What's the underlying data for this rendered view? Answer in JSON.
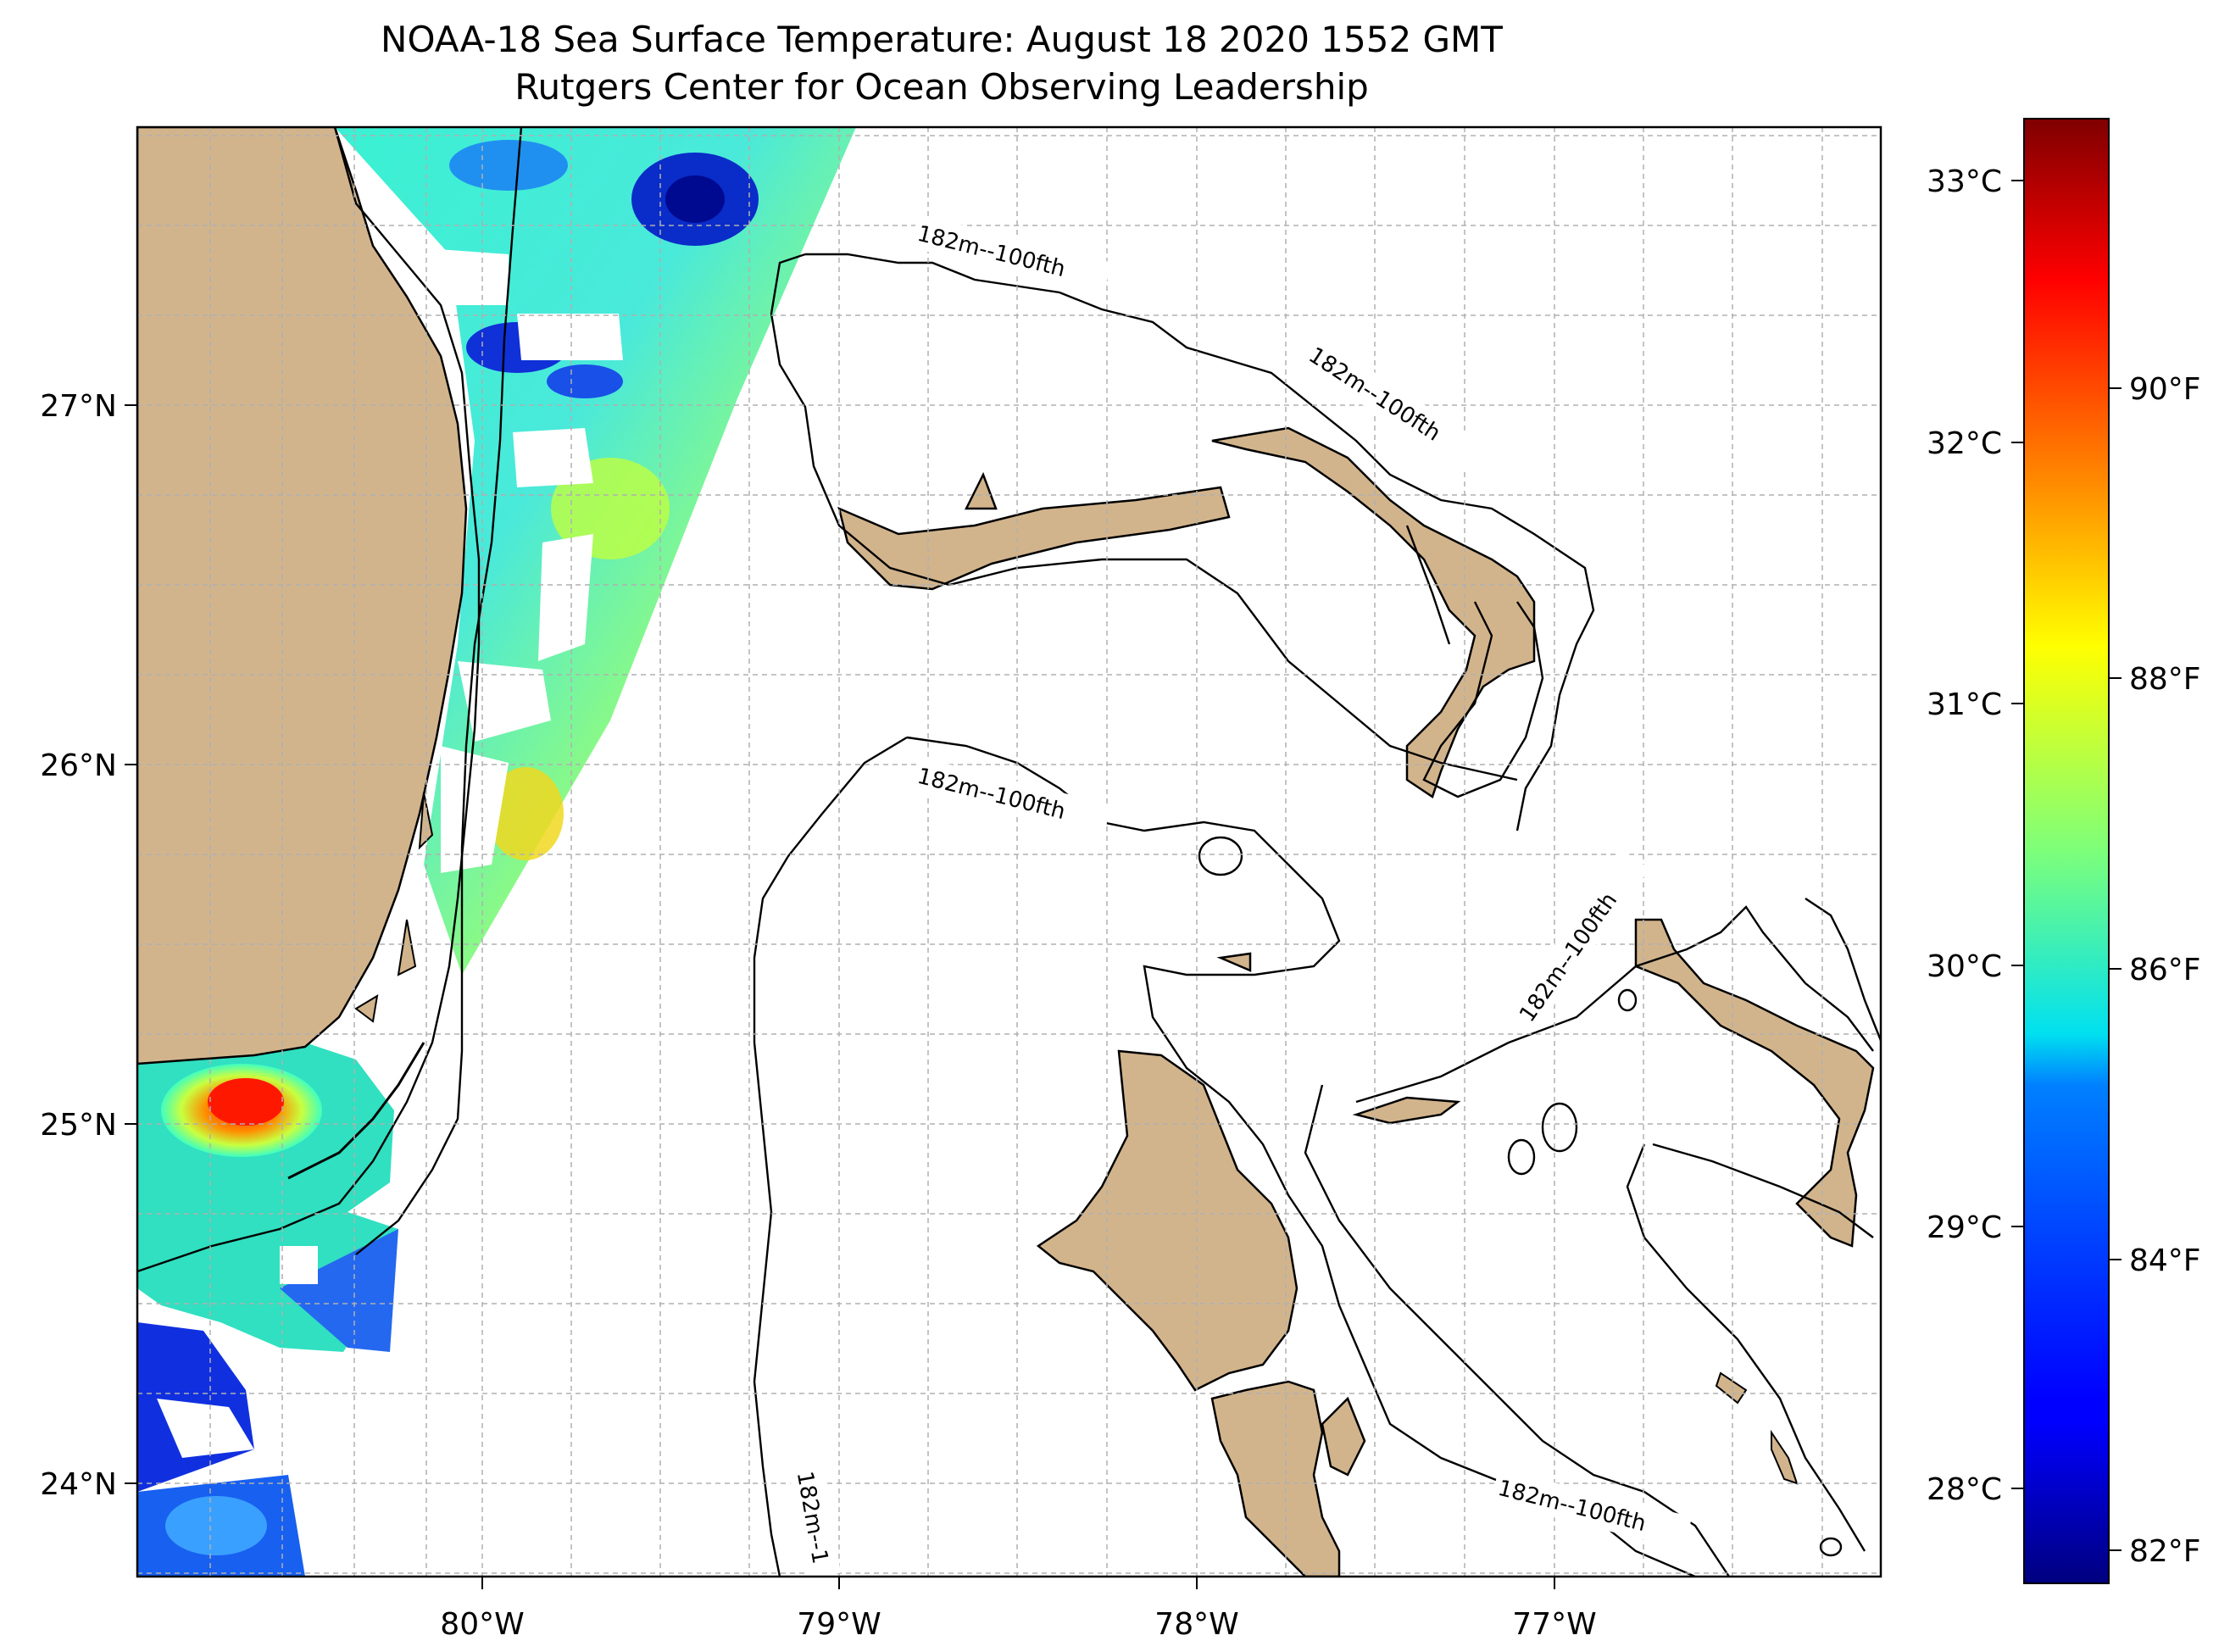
{
  "title": "NOAA-18 Sea Surface Temperature: August 18 2020 1552 GMT",
  "subtitle": "Rutgers Center for Ocean Observing Leadership",
  "map": {
    "lon_range": [
      -80.95,
      -76.1
    ],
    "lat_range": [
      23.75,
      27.8
    ],
    "grid": true,
    "x_ticks": [
      "80°W",
      "79°W",
      "78°W",
      "77°W"
    ],
    "y_ticks": [
      "27°N",
      "26°N",
      "25°N",
      "24°N"
    ],
    "contour_label": "182m--100fth",
    "contour_label_cut": "182m--1",
    "land_color": "#d2b48c",
    "ocean_color": "#ffffff"
  },
  "colorbar": {
    "colormap": "jet",
    "celsius_ticks": [
      "33°C",
      "32°C",
      "31°C",
      "30°C",
      "29°C",
      "28°C"
    ],
    "fahrenheit_ticks": [
      "90°F",
      "88°F",
      "86°F",
      "84°F",
      "82°F"
    ]
  }
}
